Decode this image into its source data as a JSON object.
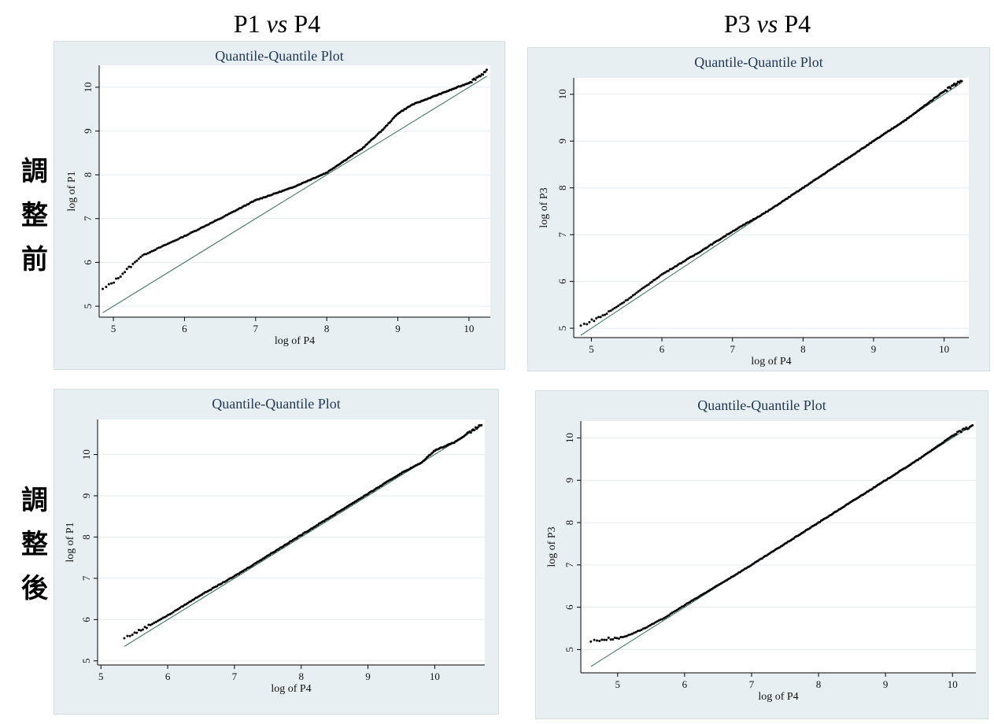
{
  "columns": [
    {
      "left": "P1",
      "vs": "vs",
      "right": "P4"
    },
    {
      "left": "P3",
      "vs": "vs",
      "right": "P4"
    }
  ],
  "rows": [
    {
      "chars": [
        "調",
        "整",
        "前"
      ]
    },
    {
      "chars": [
        "調",
        "整",
        "後"
      ]
    }
  ],
  "chart_data": [
    {
      "type": "scatter",
      "title": "Quantile-Quantile Plot",
      "xlabel": "log of P4",
      "ylabel": "log of P1",
      "xlim": [
        4.8,
        10.3
      ],
      "ylim": [
        4.75,
        10.5
      ],
      "xticks": [
        5,
        6,
        7,
        8,
        9,
        10
      ],
      "yticks": [
        5,
        6,
        7,
        8,
        9,
        10
      ],
      "reference_line": [
        [
          4.85,
          4.85
        ],
        [
          10.25,
          10.25
        ]
      ],
      "quantile_curve": [
        [
          4.85,
          5.38
        ],
        [
          5.0,
          5.55
        ],
        [
          5.2,
          5.85
        ],
        [
          5.4,
          6.15
        ],
        [
          5.6,
          6.3
        ],
        [
          6.0,
          6.6
        ],
        [
          6.5,
          7.0
        ],
        [
          7.0,
          7.42
        ],
        [
          7.5,
          7.7
        ],
        [
          8.0,
          8.05
        ],
        [
          8.5,
          8.6
        ],
        [
          8.8,
          9.05
        ],
        [
          9.0,
          9.4
        ],
        [
          9.2,
          9.6
        ],
        [
          9.6,
          9.85
        ],
        [
          10.0,
          10.1
        ],
        [
          10.25,
          10.37
        ]
      ]
    },
    {
      "type": "scatter",
      "title": "Quantile-Quantile Plot",
      "xlabel": "log of P4",
      "ylabel": "log of P3",
      "xlim": [
        4.75,
        10.35
      ],
      "ylim": [
        4.8,
        10.35
      ],
      "xticks": [
        5,
        6,
        7,
        8,
        9,
        10
      ],
      "yticks": [
        5,
        6,
        7,
        8,
        9,
        10
      ],
      "reference_line": [
        [
          4.85,
          4.85
        ],
        [
          10.25,
          10.25
        ]
      ],
      "quantile_curve": [
        [
          4.85,
          5.05
        ],
        [
          5.2,
          5.3
        ],
        [
          5.5,
          5.6
        ],
        [
          6.0,
          6.15
        ],
        [
          6.5,
          6.6
        ],
        [
          7.0,
          7.07
        ],
        [
          7.5,
          7.5
        ],
        [
          8.0,
          8.0
        ],
        [
          8.5,
          8.5
        ],
        [
          9.0,
          9.0
        ],
        [
          9.5,
          9.5
        ],
        [
          10.0,
          10.07
        ],
        [
          10.25,
          10.3
        ]
      ]
    },
    {
      "type": "scatter",
      "title": "Quantile-Quantile Plot",
      "xlabel": "log of P4",
      "ylabel": "log of P1",
      "xlim": [
        4.95,
        10.75
      ],
      "ylim": [
        4.9,
        10.85
      ],
      "xticks": [
        5,
        6,
        7,
        8,
        9,
        10
      ],
      "yticks": [
        5,
        6,
        7,
        8,
        9,
        10
      ],
      "reference_line": [
        [
          5.35,
          5.35
        ],
        [
          10.7,
          10.7
        ]
      ],
      "quantile_curve": [
        [
          5.35,
          5.55
        ],
        [
          5.6,
          5.75
        ],
        [
          6.0,
          6.1
        ],
        [
          6.5,
          6.6
        ],
        [
          7.0,
          7.05
        ],
        [
          7.5,
          7.55
        ],
        [
          8.0,
          8.05
        ],
        [
          8.5,
          8.55
        ],
        [
          9.0,
          9.05
        ],
        [
          9.5,
          9.55
        ],
        [
          9.8,
          9.8
        ],
        [
          10.0,
          10.1
        ],
        [
          10.3,
          10.3
        ],
        [
          10.7,
          10.72
        ]
      ]
    },
    {
      "type": "scatter",
      "title": "Quantile-Quantile Plot",
      "xlabel": "log of P4",
      "ylabel": "log of P3",
      "xlim": [
        4.45,
        10.35
      ],
      "ylim": [
        4.45,
        10.4
      ],
      "xticks": [
        5,
        6,
        7,
        8,
        9,
        10
      ],
      "yticks": [
        5,
        6,
        7,
        8,
        9,
        10
      ],
      "reference_line": [
        [
          4.6,
          4.6
        ],
        [
          10.3,
          10.3
        ]
      ],
      "quantile_curve": [
        [
          4.6,
          5.2
        ],
        [
          5.1,
          5.3
        ],
        [
          5.4,
          5.5
        ],
        [
          5.7,
          5.75
        ],
        [
          6.0,
          6.05
        ],
        [
          6.5,
          6.52
        ],
        [
          7.0,
          7.0
        ],
        [
          7.5,
          7.5
        ],
        [
          8.0,
          8.0
        ],
        [
          8.5,
          8.5
        ],
        [
          9.0,
          9.0
        ],
        [
          9.5,
          9.5
        ],
        [
          10.0,
          10.05
        ],
        [
          10.3,
          10.3
        ]
      ]
    }
  ]
}
